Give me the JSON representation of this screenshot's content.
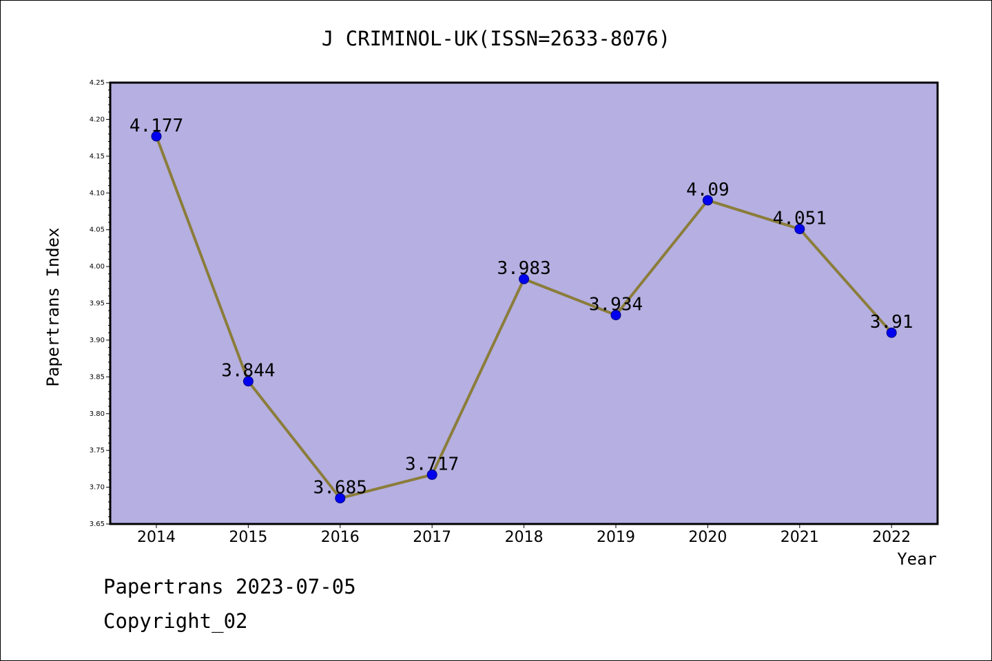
{
  "chart_data": {
    "type": "line",
    "title": "J CRIMINOL-UK(ISSN=2633-8076)",
    "xlabel": "Year",
    "ylabel": "Papertrans Index",
    "categories": [
      "2014",
      "2015",
      "2016",
      "2017",
      "2018",
      "2019",
      "2020",
      "2021",
      "2022"
    ],
    "values": [
      4.177,
      3.844,
      3.685,
      3.717,
      3.983,
      3.934,
      4.09,
      4.051,
      3.91
    ],
    "data_labels": [
      "4.177",
      "3.844",
      "3.685",
      "3.717",
      "3.983",
      "3.934",
      "4.09",
      "4.051",
      "3.91"
    ],
    "ylim": [
      3.65,
      4.25
    ],
    "yticks": [
      "3.65",
      "3.70",
      "3.75",
      "3.80",
      "3.85",
      "3.90",
      "3.95",
      "4.00",
      "4.05",
      "4.10",
      "4.15",
      "4.20",
      "4.25"
    ],
    "grid": false,
    "legend": "none",
    "colors": {
      "plot_background": "#b5afe2",
      "line": "#8b7d3a",
      "marker": "#0000ee",
      "marker_edge": "#000080"
    }
  },
  "footer": {
    "line1": "Papertrans 2023-07-05",
    "line2": "Copyright_02"
  }
}
